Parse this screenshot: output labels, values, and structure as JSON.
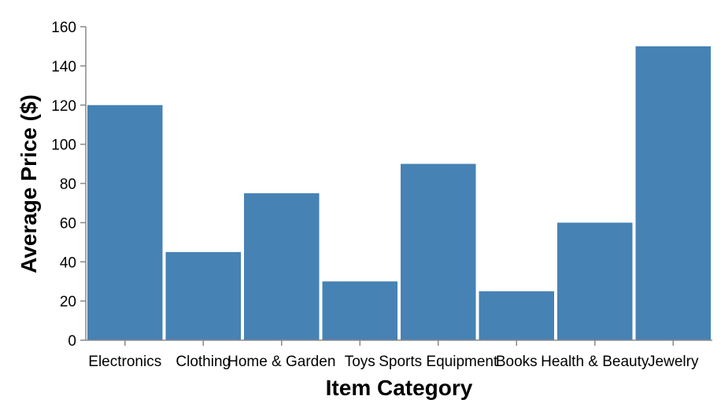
{
  "chart_data": {
    "type": "bar",
    "title": "",
    "xlabel": "Item Category",
    "ylabel": "Average Price ($)",
    "categories": [
      "Electronics",
      "Clothing",
      "Home & Garden",
      "Toys",
      "Sports Equipment",
      "Books",
      "Health & Beauty",
      "Jewelry"
    ],
    "values": [
      120,
      45,
      75,
      30,
      90,
      25,
      60,
      150
    ],
    "ylim": [
      0,
      160
    ],
    "yticks": [
      0,
      20,
      40,
      60,
      80,
      100,
      120,
      140,
      160
    ],
    "grid": false,
    "legend": "none",
    "bar_color": "#4682b4"
  }
}
